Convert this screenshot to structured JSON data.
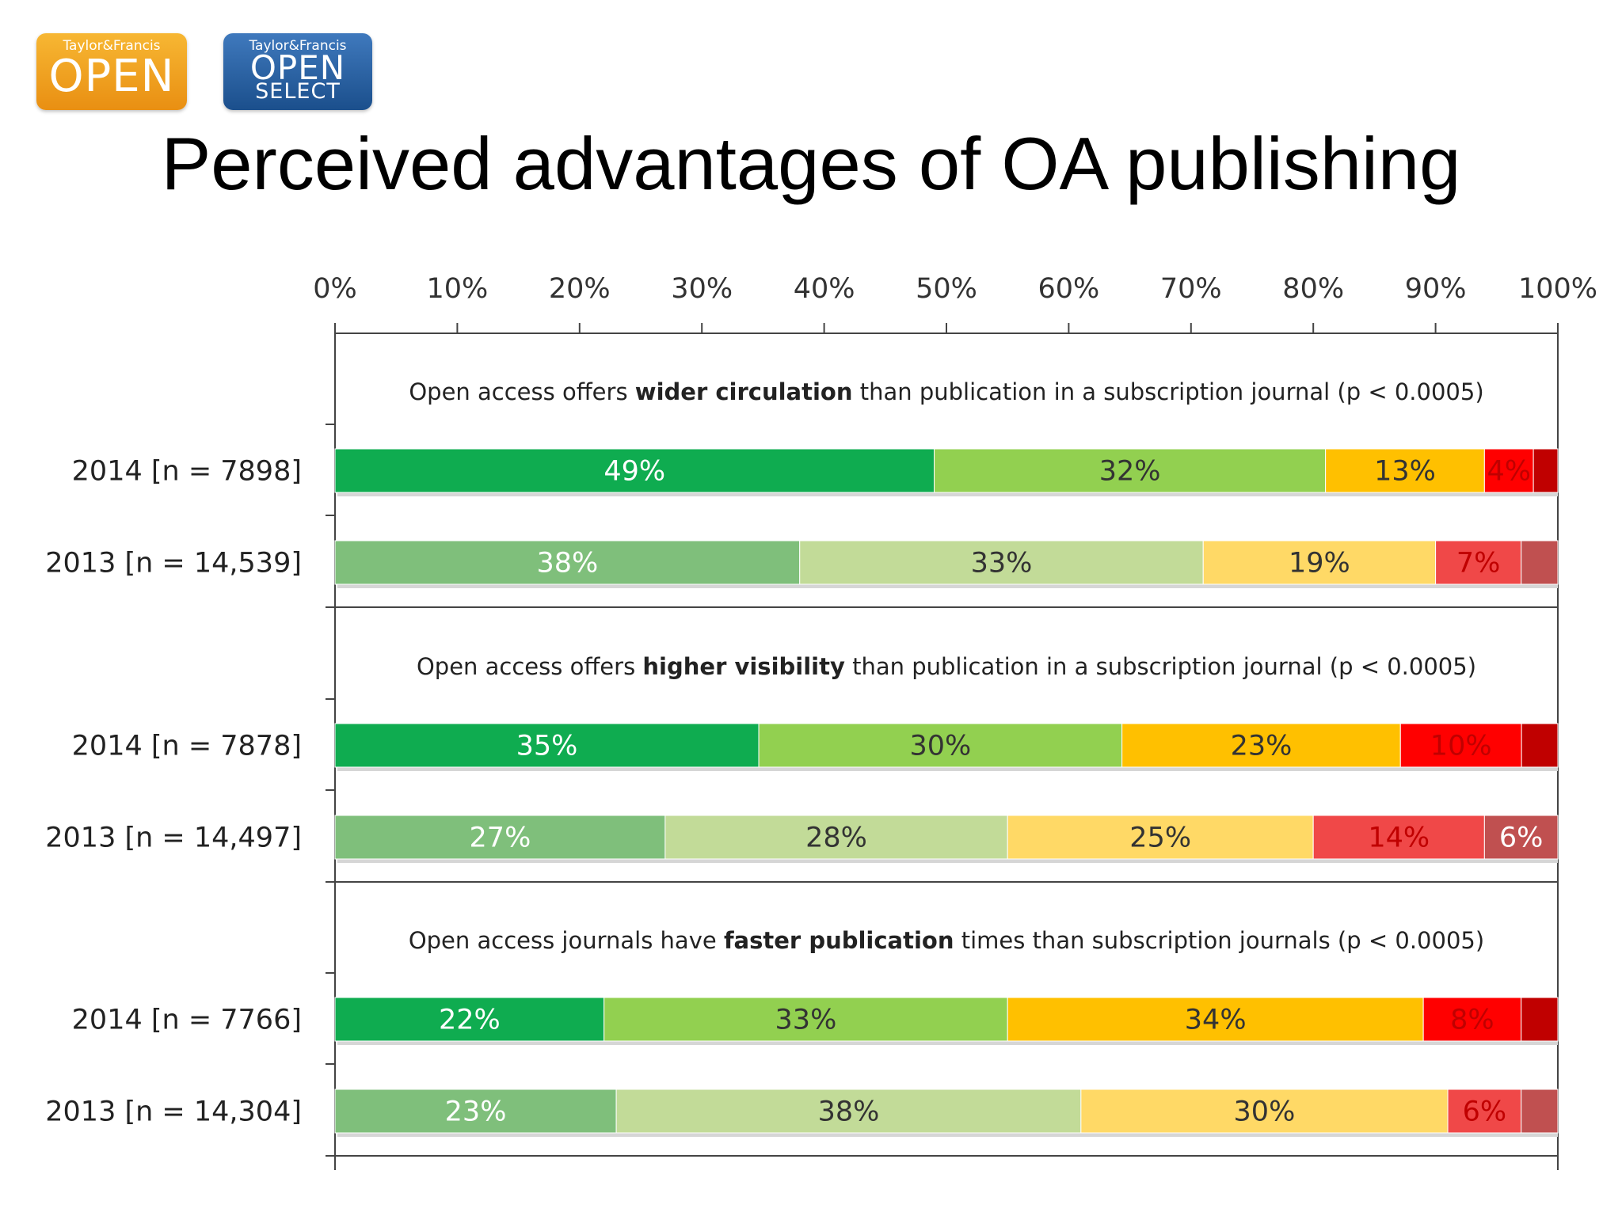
{
  "title": "Perceived advantages of OA publishing",
  "logos": [
    {
      "brand": "Taylor&Francis",
      "lines": [
        "OPEN"
      ]
    },
    {
      "brand": "Taylor&Francis",
      "lines": [
        "OPEN",
        "SELECT"
      ]
    }
  ],
  "colors": {
    "strong_agree_2014": "#0fac50",
    "agree_2014": "#92d050",
    "neutral_2014": "#ffc000",
    "disagree_2014": "#ff0000",
    "strong_disagree_2014": "#c00000",
    "strong_agree_2013": "#7fbf7b",
    "agree_2013": "#c2db98",
    "neutral_2013": "#ffd966",
    "disagree_2013": "#f04848",
    "strong_disagree_2013": "#c05050"
  },
  "chart_data": {
    "type": "bar",
    "orientation": "horizontal-stacked-percent",
    "x_ticks": [
      "0%",
      "10%",
      "20%",
      "30%",
      "40%",
      "50%",
      "60%",
      "70%",
      "80%",
      "90%",
      "100%"
    ],
    "xlim": [
      0,
      100
    ],
    "panels": [
      {
        "title_parts": [
          {
            "text": "Open access offers ",
            "bold": false
          },
          {
            "text": "wider circulation",
            "bold": true
          },
          {
            "text": " than publication in a subscription journal (p < 0.0005)",
            "bold": false
          }
        ],
        "rows": [
          {
            "label": "2014 [n = 7898]",
            "year": "2014",
            "values": [
              49,
              32,
              13,
              4,
              2
            ],
            "labels": [
              "49%",
              "32%",
              "13%",
              "4%",
              ""
            ]
          },
          {
            "label": "2013 [n = 14,539]",
            "year": "2013",
            "values": [
              38,
              33,
              19,
              7,
              3
            ],
            "labels": [
              "38%",
              "33%",
              "19%",
              "7%",
              ""
            ]
          }
        ]
      },
      {
        "title_parts": [
          {
            "text": "Open access offers ",
            "bold": false
          },
          {
            "text": "higher visibility",
            "bold": true
          },
          {
            "text": " than publication in a subscription journal (p < 0.0005)",
            "bold": false
          }
        ],
        "rows": [
          {
            "label": "2014 [n = 7878]",
            "year": "2014",
            "values": [
              35,
              30,
              23,
              10,
              3
            ],
            "labels": [
              "35%",
              "30%",
              "23%",
              "10%",
              ""
            ]
          },
          {
            "label": "2013 [n = 14,497]",
            "year": "2013",
            "values": [
              27,
              28,
              25,
              14,
              6
            ],
            "labels": [
              "27%",
              "28%",
              "25%",
              "14%",
              "6%"
            ]
          }
        ]
      },
      {
        "title_parts": [
          {
            "text": "Open access journals have ",
            "bold": false
          },
          {
            "text": "faster publication",
            "bold": true
          },
          {
            "text": " times than subscription journals (p < 0.0005)",
            "bold": false
          }
        ],
        "rows": [
          {
            "label": "2014 [n = 7766]",
            "year": "2014",
            "values": [
              22,
              33,
              34,
              8,
              3
            ],
            "labels": [
              "22%",
              "33%",
              "34%",
              "8%",
              ""
            ]
          },
          {
            "label": "2013 [n = 14,304]",
            "year": "2013",
            "values": [
              23,
              38,
              30,
              6,
              3
            ],
            "labels": [
              "23%",
              "38%",
              "30%",
              "6%",
              ""
            ]
          }
        ]
      }
    ]
  }
}
